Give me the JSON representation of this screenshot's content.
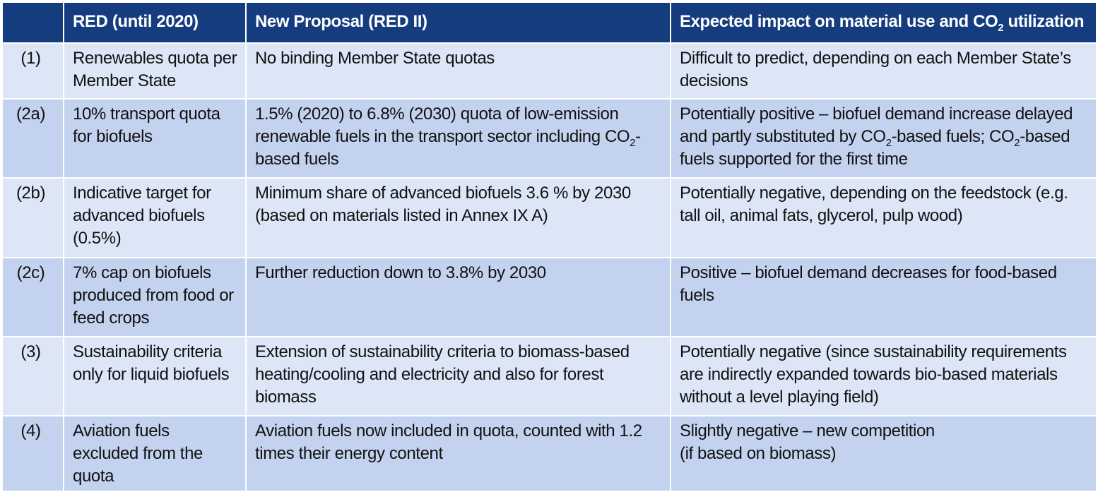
{
  "header": {
    "col0": "",
    "col1": "RED (until 2020)",
    "col2": "New Proposal (RED II)",
    "col3_pre": "Expected impact on material use and CO",
    "col3_sub": "2",
    "col3_post": " utilization"
  },
  "rows": [
    {
      "id": "(1)",
      "red": "Renewables quota per Member State",
      "proposal": "No binding Member State quotas",
      "impact": "Difficult to predict, depending on each Member State’s decisions"
    },
    {
      "id": "(2a)",
      "red": "10% transport quota for biofuels",
      "proposal_pre": "1.5% (2020) to 6.8% (2030) quota of low-emission renewable fuels in the transport sector including CO",
      "proposal_sub": "2",
      "proposal_post": "-based fuels",
      "impact_pre": "Potentially positive – biofuel demand increase delayed and partly substituted by CO",
      "impact_sub1": "2",
      "impact_mid": "-based fuels; CO",
      "impact_sub2": "2",
      "impact_post": "-based fuels supported for the first time"
    },
    {
      "id": "(2b)",
      "red": "Indicative target for advanced biofuels (0.5%)",
      "proposal": "Minimum share of advanced biofuels 3.6 % by 2030 (based on materials listed in Annex IX A)",
      "impact": "Potentially negative, depending on the feedstock (e.g. tall oil, animal fats, glycerol, pulp wood)"
    },
    {
      "id": "(2c)",
      "red": "7% cap on biofuels produced from food or feed crops",
      "proposal": "Further reduction down to 3.8% by 2030",
      "impact": "Positive – biofuel demand decreases for food-based fuels"
    },
    {
      "id": "(3)",
      "red": "Sustainability criteria only for liquid biofuels",
      "proposal": "Extension of sustainability criteria to biomass-based heating/cooling and electricity and also for forest biomass",
      "impact": "Potentially negative (since sustainability requirements are indirectly expanded towards bio-based materials without a level playing field)"
    },
    {
      "id": "(4)",
      "red": "Aviation fuels excluded from the quota",
      "proposal": "Aviation fuels now included in quota, counted with 1.2 times their energy content",
      "impact_line1": "Slightly negative – new competition",
      "impact_line2": "(if based on biomass)"
    }
  ],
  "colors": {
    "header_bg": "#143c7e",
    "row_light": "#dce6f7",
    "row_dark": "#c3d2ee"
  }
}
